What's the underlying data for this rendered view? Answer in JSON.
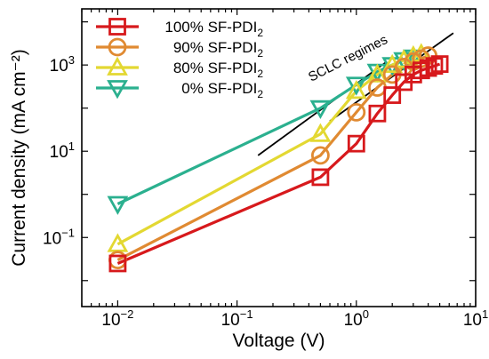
{
  "chart_data": {
    "type": "line",
    "xlabel": "Voltage (V)",
    "ylabel": "Current density (mA cm⁻²)",
    "xscale": "log",
    "yscale": "log",
    "xlim": [
      0.005,
      10
    ],
    "ylim": [
      0.0025,
      20000
    ],
    "x_ticks": [
      {
        "value": 0.01,
        "base": "10",
        "exp": "−2"
      },
      {
        "value": 0.1,
        "base": "10",
        "exp": "−1"
      },
      {
        "value": 1,
        "base": "10",
        "exp": "0"
      },
      {
        "value": 10,
        "base": "10",
        "exp": "1"
      }
    ],
    "y_ticks": [
      {
        "value": 0.1,
        "base": "10",
        "exp": "−1"
      },
      {
        "value": 10,
        "base": "10",
        "exp": "1"
      },
      {
        "value": 1000,
        "base": "10",
        "exp": "3"
      }
    ],
    "legend_position": "top-left",
    "series": [
      {
        "name": "100% SF-PDI",
        "name_sub": "2",
        "color": "#d7191c",
        "marker": "square",
        "x": [
          0.01,
          0.5,
          1.0,
          1.5,
          2.0,
          2.5,
          3.0,
          3.5,
          4.0,
          4.5,
          5.0
        ],
        "y": [
          0.025,
          2.5,
          15,
          75,
          200,
          400,
          600,
          750,
          850,
          950,
          1050
        ]
      },
      {
        "name": "90% SF-PDI",
        "name_sub": "2",
        "color": "#e08a32",
        "marker": "circle",
        "x": [
          0.01,
          0.5,
          1.0,
          1.5,
          2.0,
          2.5,
          3.0,
          3.5,
          4.0
        ],
        "y": [
          0.03,
          8,
          80,
          300,
          600,
          900,
          1200,
          1400,
          1650
        ]
      },
      {
        "name": "80% SF-PDI",
        "name_sub": "2",
        "color": "#e3d832",
        "marker": "triangle-up",
        "x": [
          0.01,
          0.5,
          1.0,
          1.5,
          2.0,
          2.5,
          3.0,
          3.5
        ],
        "y": [
          0.07,
          25,
          250,
          600,
          1000,
          1300,
          1600,
          1800
        ]
      },
      {
        "name": "0% SF-PDI",
        "name_sub": "2",
        "color": "#2bb08f",
        "marker": "triangle-down",
        "x": [
          0.01,
          0.5,
          1.0,
          1.5,
          2.0,
          2.5,
          3.0
        ],
        "y": [
          0.6,
          100,
          350,
          700,
          1000,
          1300,
          1500
        ]
      }
    ],
    "reference_lines": [
      {
        "x": [
          0.15,
          1.8
        ],
        "y": [
          8,
          1200
        ]
      },
      {
        "x": [
          0.6,
          6.5
        ],
        "y": [
          50,
          5500
        ]
      }
    ],
    "annotation": "SCLC regimes"
  }
}
